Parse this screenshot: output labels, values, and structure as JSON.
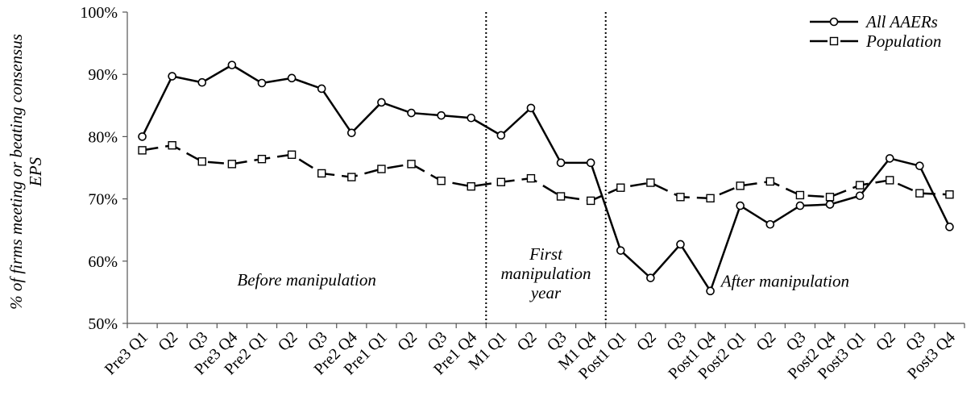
{
  "chart_data": {
    "type": "line",
    "ylabel_lines": [
      "% of firms meeting or beating consensus",
      "EPS"
    ],
    "ylim": [
      50,
      100
    ],
    "yticks": [
      50,
      60,
      70,
      80,
      90,
      100
    ],
    "ytick_labels": [
      "50%",
      "60%",
      "70%",
      "80%",
      "90%",
      "100%"
    ],
    "categories": [
      "Pre3 Q1",
      "Q2",
      "Q3",
      "Pre3 Q4",
      "Pre2 Q1",
      "Q2",
      "Q3",
      "Pre2 Q4",
      "Pre1 Q1",
      "Q2",
      "Q3",
      "Pre1 Q4",
      "M1 Q1",
      "Q2",
      "Q3",
      "M1 Q4",
      "Post1 Q1",
      "Q2",
      "Q3",
      "Post1 Q4",
      "Post2 Q1",
      "Q2",
      "Q3",
      "Post2 Q4",
      "Post3 Q1",
      "Q2",
      "Q3",
      "Post3 Q4"
    ],
    "series": [
      {
        "name": "All AAERs",
        "style": "solid-circle",
        "values": [
          80.0,
          89.7,
          88.7,
          91.5,
          88.6,
          89.4,
          87.7,
          80.6,
          85.5,
          83.8,
          83.4,
          83.0,
          80.2,
          84.6,
          75.8,
          75.8,
          61.7,
          57.3,
          62.7,
          55.2,
          68.9,
          65.9,
          68.9,
          69.1,
          70.5,
          76.5,
          75.3,
          65.5
        ]
      },
      {
        "name": "Population",
        "style": "dashed-square",
        "values": [
          77.8,
          78.6,
          76.0,
          75.6,
          76.4,
          77.1,
          74.1,
          73.5,
          74.8,
          75.6,
          72.9,
          72.0,
          72.7,
          73.3,
          70.4,
          69.7,
          71.8,
          72.6,
          70.3,
          70.1,
          72.1,
          72.8,
          70.6,
          70.3,
          72.2,
          73.0,
          70.9,
          70.7
        ]
      }
    ],
    "dividers_after_index": [
      11,
      15
    ],
    "region_labels": [
      {
        "lines": [
          "Before manipulation"
        ],
        "category_center": 5.5,
        "y": 57.0
      },
      {
        "lines": [
          "First",
          "manipulation",
          "year"
        ],
        "category_center": 13.5,
        "y": 58.0
      },
      {
        "lines": [
          "After manipulation"
        ],
        "category_center": 21.5,
        "y": 56.8
      }
    ],
    "legend_position": "top-right",
    "grid": false
  }
}
